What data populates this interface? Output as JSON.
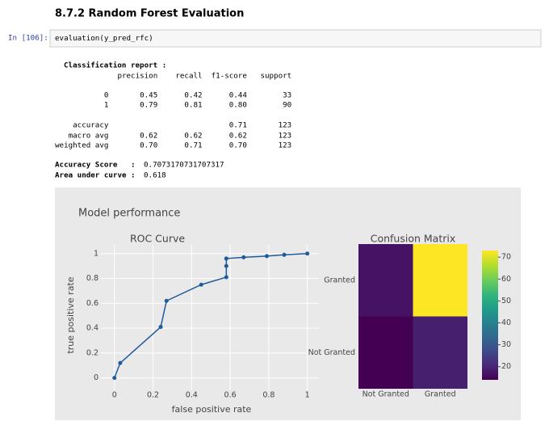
{
  "header": {
    "title": "8.7.2 Random Forest Evaluation"
  },
  "cell": {
    "prompt": "In [106]:",
    "code": "evaluation(y_pred_rfc)"
  },
  "output": {
    "report_title": "Classification report :",
    "report_lines": [
      "              precision    recall  f1-score   support",
      "           0       0.45      0.42      0.44        33",
      "           1       0.79      0.81      0.80        90",
      "    accuracy                           0.71       123",
      "   macro avg       0.62      0.62      0.62       123",
      "weighted avg       0.70      0.71      0.70       123"
    ],
    "accuracy": {
      "label": "Accuracy Score   :",
      "value": "0.7073170731707317"
    },
    "auc": {
      "label": "Area under curve :",
      "value": "0.618"
    },
    "figure_title": "Model performance"
  },
  "chart_data": [
    {
      "type": "line",
      "title": "ROC Curve",
      "xlabel": "false positive rate",
      "ylabel": "true positive rate",
      "x": [
        0,
        0.03,
        0.24,
        0.27,
        0.45,
        0.58,
        0.58,
        0.58,
        0.67,
        0.79,
        0.88,
        1
      ],
      "values": [
        0,
        0.12,
        0.41,
        0.62,
        0.75,
        0.81,
        0.9,
        0.96,
        0.97,
        0.98,
        0.99,
        1
      ],
      "color": "#1f5b99",
      "markers": true,
      "grid": true,
      "xlim": [
        -0.07,
        1.06
      ],
      "ylim": [
        -0.1,
        1.07
      ],
      "xticks": [
        0,
        0.2,
        0.4,
        0.6,
        0.8,
        1
      ],
      "yticks": [
        0,
        0.2,
        0.4,
        0.6,
        0.8,
        1
      ]
    },
    {
      "type": "heatmap",
      "title": "Confusion Matrix",
      "x": [
        "Not Granted",
        "Granted"
      ],
      "y": [
        "Not Granted",
        "Granted"
      ],
      "z": [
        [
          14,
          19
        ],
        [
          17,
          73
        ]
      ],
      "colorscale": "Viridis",
      "zlim": [
        14,
        73
      ],
      "colorbar_ticks": [
        20,
        30,
        40,
        50,
        60,
        70
      ]
    }
  ]
}
